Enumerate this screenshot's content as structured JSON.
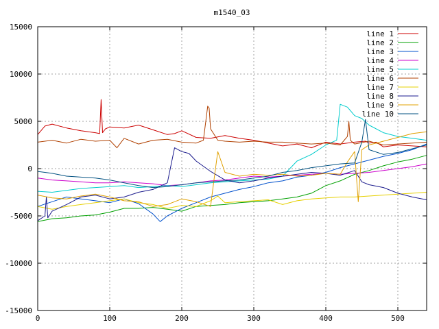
{
  "chart_data": {
    "type": "line",
    "title": "m1540_03",
    "xlabel": "",
    "ylabel": "",
    "xlim": [
      0,
      540
    ],
    "ylim": [
      -15000,
      15000
    ],
    "x_ticks": [
      0,
      100,
      200,
      300,
      400,
      500
    ],
    "y_ticks": [
      -15000,
      -10000,
      -5000,
      0,
      5000,
      10000,
      15000
    ],
    "grid": true,
    "legend_position": "top-right",
    "series": [
      {
        "name": "line 1",
        "color": "#cc0000",
        "x": [
          0,
          10,
          20,
          40,
          60,
          80,
          86,
          88,
          90,
          92,
          94,
          100,
          120,
          140,
          160,
          180,
          190,
          200,
          220,
          240,
          260,
          280,
          300,
          320,
          340,
          360,
          380,
          400,
          420,
          440,
          455,
          460,
          470,
          480,
          500,
          520,
          540
        ],
        "y": [
          3600,
          4500,
          4700,
          4300,
          4000,
          3800,
          3700,
          7300,
          3800,
          4000,
          4200,
          4400,
          4300,
          4600,
          4100,
          3600,
          3700,
          4000,
          3300,
          3200,
          3500,
          3200,
          3000,
          2700,
          2400,
          2600,
          2200,
          2800,
          2600,
          2800,
          2900,
          2700,
          2800,
          2300,
          2500,
          2400,
          2300
        ]
      },
      {
        "name": "line 2",
        "color": "#00a000",
        "x": [
          0,
          20,
          40,
          60,
          80,
          100,
          120,
          140,
          160,
          180,
          200,
          220,
          240,
          260,
          280,
          300,
          320,
          340,
          360,
          380,
          400,
          420,
          440,
          460,
          480,
          500,
          520,
          540
        ],
        "y": [
          -5600,
          -5300,
          -5200,
          -5000,
          -4900,
          -4600,
          -4200,
          -4200,
          -4100,
          -4300,
          -4500,
          -4000,
          -3900,
          -3800,
          -3600,
          -3500,
          -3400,
          -3200,
          -3000,
          -2600,
          -1800,
          -1300,
          -600,
          -200,
          300,
          700,
          1000,
          1400
        ]
      },
      {
        "name": "line 3",
        "color": "#0050cc",
        "x": [
          0,
          20,
          40,
          60,
          80,
          100,
          120,
          140,
          160,
          170,
          180,
          200,
          220,
          240,
          260,
          280,
          300,
          320,
          340,
          360,
          380,
          400,
          420,
          440,
          460,
          480,
          500,
          520,
          540
        ],
        "y": [
          -4000,
          -3500,
          -3000,
          -3200,
          -3400,
          -3600,
          -3200,
          -3700,
          -4800,
          -5600,
          -5000,
          -4200,
          -3600,
          -3000,
          -2600,
          -2200,
          -1900,
          -1500,
          -1300,
          -900,
          -700,
          -400,
          100,
          500,
          900,
          1300,
          1600,
          2000,
          2600
        ]
      },
      {
        "name": "line 4",
        "color": "#cc00cc",
        "x": [
          0,
          20,
          40,
          60,
          80,
          100,
          120,
          140,
          160,
          180,
          200,
          220,
          240,
          260,
          280,
          300,
          320,
          340,
          360,
          380,
          400,
          420,
          440,
          460,
          480,
          500,
          520,
          540
        ],
        "y": [
          -1000,
          -1200,
          -1300,
          -1400,
          -1500,
          -1500,
          -1400,
          -1500,
          -1600,
          -1800,
          -1700,
          -1500,
          -1300,
          -1200,
          -1000,
          -800,
          -900,
          -800,
          -700,
          -600,
          -500,
          -600,
          -500,
          -400,
          -200,
          0,
          200,
          500
        ]
      },
      {
        "name": "line 5",
        "color": "#00cccc",
        "x": [
          0,
          20,
          40,
          60,
          80,
          100,
          120,
          140,
          160,
          180,
          200,
          220,
          240,
          260,
          280,
          300,
          320,
          340,
          360,
          380,
          400,
          415,
          420,
          430,
          440,
          450,
          460,
          480,
          500,
          520,
          540
        ],
        "y": [
          -2400,
          -2500,
          -2300,
          -2100,
          -2000,
          -1900,
          -1800,
          -2000,
          -1900,
          -1800,
          -1900,
          -1700,
          -1500,
          -1400,
          -1300,
          -1200,
          -1100,
          -800,
          800,
          1500,
          2500,
          3000,
          6800,
          6500,
          5600,
          5300,
          4600,
          3800,
          3400,
          3200,
          3000
        ]
      },
      {
        "name": "line 6",
        "color": "#b04000",
        "x": [
          0,
          20,
          40,
          60,
          80,
          100,
          110,
          120,
          140,
          160,
          180,
          200,
          220,
          230,
          236,
          238,
          240,
          250,
          260,
          280,
          300,
          320,
          340,
          360,
          380,
          400,
          420,
          430,
          432,
          434,
          440,
          460,
          480,
          500,
          520,
          540
        ],
        "y": [
          2800,
          3000,
          2700,
          3100,
          2900,
          3000,
          2200,
          3200,
          2600,
          3000,
          3100,
          2800,
          2700,
          3000,
          6600,
          6400,
          4200,
          3000,
          2900,
          2800,
          2900,
          2800,
          2800,
          2700,
          2600,
          2700,
          2500,
          3400,
          5000,
          3000,
          2600,
          2900,
          2500,
          2600,
          2700,
          2800
        ]
      },
      {
        "name": "line 7",
        "color": "#e6d000",
        "x": [
          0,
          20,
          40,
          60,
          80,
          100,
          120,
          140,
          160,
          180,
          200,
          220,
          240,
          250,
          260,
          280,
          300,
          320,
          340,
          360,
          380,
          400,
          420,
          440,
          460,
          480,
          500,
          520,
          540
        ],
        "y": [
          -4000,
          -4300,
          -4000,
          -3800,
          -3600,
          -3400,
          -3200,
          -3600,
          -3800,
          -4200,
          -3900,
          -4000,
          -3400,
          -2900,
          -3600,
          -3500,
          -3400,
          -3300,
          -3800,
          -3400,
          -3200,
          -3100,
          -3000,
          -3000,
          -2900,
          -2800,
          -2700,
          -2600,
          -2500
        ]
      },
      {
        "name": "line 8",
        "color": "#1a1a8c",
        "x": [
          0,
          10,
          12,
          14,
          20,
          40,
          60,
          80,
          100,
          120,
          140,
          160,
          180,
          190,
          200,
          210,
          220,
          240,
          260,
          280,
          300,
          320,
          340,
          360,
          380,
          400,
          420,
          440,
          450,
          460,
          480,
          500,
          520,
          540
        ],
        "y": [
          -5500,
          -5000,
          -3000,
          -5200,
          -4500,
          -3800,
          -3000,
          -2800,
          -3200,
          -3000,
          -2500,
          -2200,
          -1500,
          2200,
          1800,
          1600,
          800,
          -300,
          -1200,
          -1500,
          -1300,
          -1000,
          -800,
          -600,
          -400,
          -500,
          -700,
          -200,
          -1400,
          -1700,
          -2000,
          -2600,
          -3000,
          -3300
        ]
      },
      {
        "name": "line 9",
        "color": "#e0a000",
        "x": [
          0,
          20,
          40,
          60,
          80,
          100,
          120,
          140,
          160,
          180,
          200,
          220,
          240,
          245,
          250,
          260,
          280,
          300,
          320,
          340,
          360,
          380,
          400,
          420,
          430,
          440,
          445,
          450,
          460,
          480,
          500,
          520,
          540
        ],
        "y": [
          -2800,
          -3100,
          -3200,
          -2900,
          -2700,
          -3000,
          -3400,
          -3500,
          -4000,
          -3800,
          -3200,
          -3500,
          -4000,
          -1000,
          1800,
          -400,
          -800,
          -600,
          -700,
          -600,
          -800,
          -700,
          -500,
          -600,
          700,
          1800,
          -3500,
          2000,
          2500,
          2900,
          3300,
          3700,
          3900
        ]
      },
      {
        "name": "line 10",
        "color": "#005080",
        "x": [
          0,
          20,
          40,
          60,
          80,
          100,
          120,
          140,
          160,
          180,
          200,
          220,
          240,
          260,
          280,
          300,
          320,
          340,
          360,
          380,
          400,
          420,
          440,
          450,
          455,
          460,
          480,
          500,
          520,
          540
        ],
        "y": [
          -300,
          -500,
          -800,
          -900,
          -1000,
          -1200,
          -1500,
          -1800,
          -2000,
          -1900,
          -1700,
          -1500,
          -1400,
          -1300,
          -1200,
          -1000,
          -800,
          -400,
          -200,
          100,
          300,
          500,
          600,
          2800,
          5200,
          2000,
          1500,
          1700,
          2100,
          2500
        ]
      }
    ]
  }
}
